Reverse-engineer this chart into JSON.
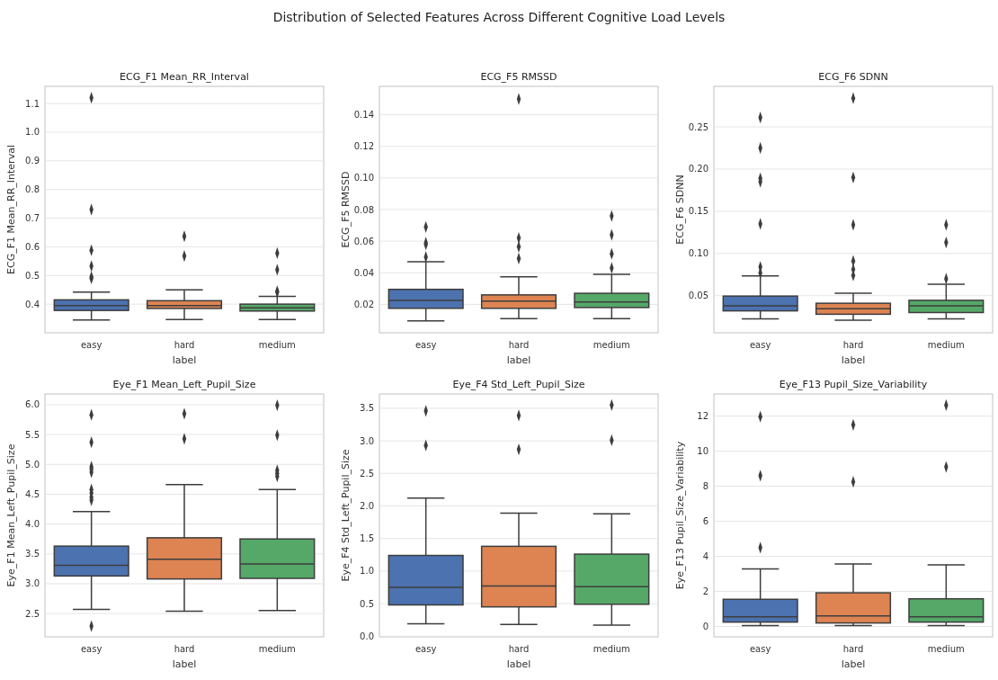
{
  "chart_data": [
    {
      "type": "other",
      "title": "Distribution of Selected Features Across Different Cognitive Load Levels"
    },
    {
      "type": "box",
      "title": "ECG_F1 Mean_RR_Interval",
      "xlabel": "label",
      "ylabel": "ECG_F1 Mean_RR_Interval",
      "categories": [
        "easy",
        "hard",
        "medium"
      ],
      "colors": [
        "#4c72b0",
        "#dd8452",
        "#55a868"
      ],
      "grid": "y",
      "marker": "diamond",
      "ylim": [
        0.3,
        1.16
      ],
      "yticks": [
        0.4,
        0.5,
        0.6,
        0.7,
        0.8,
        0.9,
        {
          "value": 1.0,
          "label": "1.0"
        },
        1.1
      ],
      "boxes": [
        {
          "low": 0.345,
          "q1": 0.378,
          "median": 0.395,
          "q3": 0.415,
          "high": 0.442,
          "outliers": [
            1.12,
            0.73,
            0.588,
            0.533,
            0.495,
            0.49
          ]
        },
        {
          "low": 0.346,
          "q1": 0.385,
          "median": 0.395,
          "q3": 0.412,
          "high": 0.45,
          "outliers": [
            0.637,
            0.568
          ]
        },
        {
          "low": 0.346,
          "q1": 0.376,
          "median": 0.387,
          "q3": 0.4,
          "high": 0.427,
          "outliers": [
            0.578,
            0.52,
            0.445,
            0.442
          ]
        }
      ]
    },
    {
      "type": "box",
      "title": "ECG_F5 RMSSD",
      "xlabel": "label",
      "ylabel": "ECG_F5 RMSSD",
      "categories": [
        "easy",
        "hard",
        "medium"
      ],
      "colors": [
        "#4c72b0",
        "#dd8452",
        "#55a868"
      ],
      "grid": "y",
      "marker": "diamond",
      "ylim": [
        0.002,
        0.158
      ],
      "yticks": [
        0.02,
        0.04,
        0.06,
        0.08,
        {
          "value": 0.1,
          "label": "0.10"
        },
        0.12,
        0.14
      ],
      "boxes": [
        {
          "low": 0.0095,
          "q1": 0.0175,
          "median": 0.0225,
          "q3": 0.0295,
          "high": 0.047,
          "outliers": [
            0.069,
            0.059,
            0.058,
            0.05
          ]
        },
        {
          "low": 0.011,
          "q1": 0.0175,
          "median": 0.022,
          "q3": 0.026,
          "high": 0.0375,
          "outliers": [
            0.15,
            0.062,
            0.0565,
            0.049
          ]
        },
        {
          "low": 0.011,
          "q1": 0.018,
          "median": 0.0215,
          "q3": 0.027,
          "high": 0.039,
          "outliers": [
            0.076,
            0.064,
            0.052,
            0.043
          ]
        }
      ]
    },
    {
      "type": "box",
      "title": "ECG_F6 SDNN",
      "xlabel": "label",
      "ylabel": "ECG_F6 SDNN",
      "categories": [
        "easy",
        "hard",
        "medium"
      ],
      "colors": [
        "#4c72b0",
        "#dd8452",
        "#55a868"
      ],
      "grid": "y",
      "marker": "diamond",
      "ylim": [
        0.006,
        0.298
      ],
      "yticks": [
        0.05,
        {
          "value": 0.1,
          "label": "0.10"
        },
        0.15,
        {
          "value": 0.2,
          "label": "0.20"
        },
        0.25
      ],
      "boxes": [
        {
          "low": 0.0225,
          "q1": 0.032,
          "median": 0.038,
          "q3": 0.0495,
          "high": 0.0735,
          "outliers": [
            0.261,
            0.225,
            0.189,
            0.185,
            0.135,
            0.084,
            0.077
          ]
        },
        {
          "low": 0.021,
          "q1": 0.028,
          "median": 0.0345,
          "q3": 0.041,
          "high": 0.053,
          "outliers": [
            0.284,
            0.19,
            0.134,
            0.091,
            0.081,
            0.074
          ]
        },
        {
          "low": 0.0225,
          "q1": 0.03,
          "median": 0.038,
          "q3": 0.0445,
          "high": 0.0635,
          "outliers": [
            0.134,
            0.113,
            0.07
          ]
        }
      ]
    },
    {
      "type": "box",
      "title": "Eye_F1 Mean_Left_Pupil_Size",
      "xlabel": "label",
      "ylabel": "Eye_F1 Mean_Left_Pupil_Size",
      "categories": [
        "easy",
        "hard",
        "medium"
      ],
      "colors": [
        "#4c72b0",
        "#dd8452",
        "#55a868"
      ],
      "grid": "y",
      "marker": "diamond",
      "ylim": [
        2.11,
        6.18
      ],
      "yticks": [
        2.5,
        {
          "value": 3,
          "label": "3.0"
        },
        3.5,
        {
          "value": 4,
          "label": "4.0"
        },
        4.5,
        {
          "value": 5,
          "label": "5.0"
        },
        5.5,
        {
          "value": 6,
          "label": "6.0"
        }
      ],
      "boxes": [
        {
          "low": 2.57,
          "q1": 3.13,
          "median": 3.31,
          "q3": 3.63,
          "high": 4.21,
          "outliers": [
            5.83,
            5.37,
            4.96,
            4.92,
            4.87,
            4.58,
            4.52,
            4.45,
            4.4,
            2.29
          ]
        },
        {
          "low": 2.54,
          "q1": 3.08,
          "median": 3.41,
          "q3": 3.77,
          "high": 4.66,
          "outliers": [
            5.85,
            5.43
          ]
        },
        {
          "low": 2.55,
          "q1": 3.09,
          "median": 3.33,
          "q3": 3.75,
          "high": 4.58,
          "outliers": [
            5.99,
            5.49,
            4.9,
            4.85,
            4.8
          ]
        }
      ]
    },
    {
      "type": "box",
      "title": "Eye_F4 Std_Left_Pupil_Size",
      "xlabel": "label",
      "ylabel": "Eye_F4 Std_Left_Pupil_Size",
      "categories": [
        "easy",
        "hard",
        "medium"
      ],
      "colors": [
        "#4c72b0",
        "#dd8452",
        "#55a868"
      ],
      "grid": "y",
      "marker": "diamond",
      "ylim": [
        -0.01,
        3.72
      ],
      "yticks": [
        {
          "value": 0,
          "label": "0.0"
        },
        0.5,
        {
          "value": 1,
          "label": "1.0"
        },
        1.5,
        {
          "value": 2,
          "label": "2.0"
        },
        2.5,
        {
          "value": 3,
          "label": "3.0"
        },
        3.5
      ],
      "boxes": [
        {
          "low": 0.19,
          "q1": 0.48,
          "median": 0.75,
          "q3": 1.24,
          "high": 2.12,
          "outliers": [
            3.46,
            2.93
          ]
        },
        {
          "low": 0.18,
          "q1": 0.45,
          "median": 0.77,
          "q3": 1.38,
          "high": 1.89,
          "outliers": [
            3.39,
            2.87
          ]
        },
        {
          "low": 0.17,
          "q1": 0.49,
          "median": 0.76,
          "q3": 1.26,
          "high": 1.88,
          "outliers": [
            3.55,
            3.01
          ]
        }
      ]
    },
    {
      "type": "box",
      "title": "Eye_F13 Pupil_Size_Variability",
      "xlabel": "label",
      "ylabel": "Eye_F13 Pupil_Size_Variability",
      "categories": [
        "easy",
        "hard",
        "medium"
      ],
      "colors": [
        "#4c72b0",
        "#dd8452",
        "#55a868"
      ],
      "grid": "y",
      "marker": "diamond",
      "ylim": [
        -0.59,
        13.26
      ],
      "yticks": [
        0,
        2,
        4,
        6,
        8,
        10,
        12
      ],
      "boxes": [
        {
          "low": 0.05,
          "q1": 0.25,
          "median": 0.55,
          "q3": 1.55,
          "high": 3.28,
          "outliers": [
            11.97,
            8.6,
            4.5
          ]
        },
        {
          "low": 0.05,
          "q1": 0.2,
          "median": 0.6,
          "q3": 1.92,
          "high": 3.56,
          "outliers": [
            11.5,
            8.25
          ]
        },
        {
          "low": 0.05,
          "q1": 0.25,
          "median": 0.55,
          "q3": 1.58,
          "high": 3.52,
          "outliers": [
            12.62,
            9.1
          ]
        }
      ]
    }
  ]
}
